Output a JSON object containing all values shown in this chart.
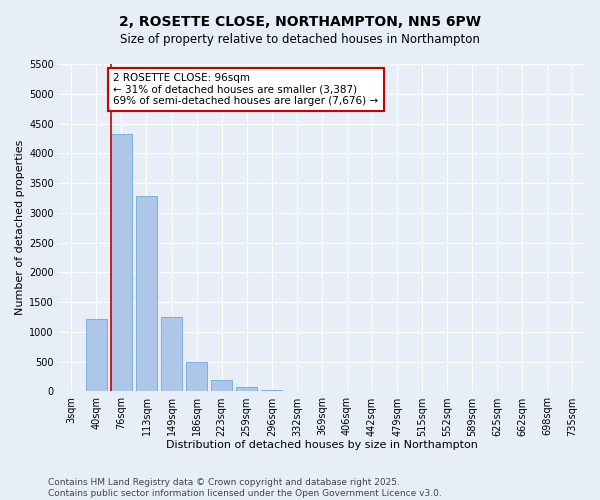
{
  "title": "2, ROSETTE CLOSE, NORTHAMPTON, NN5 6PW",
  "subtitle": "Size of property relative to detached houses in Northampton",
  "xlabel": "Distribution of detached houses by size in Northampton",
  "ylabel": "Number of detached properties",
  "categories": [
    "3sqm",
    "40sqm",
    "76sqm",
    "113sqm",
    "149sqm",
    "186sqm",
    "223sqm",
    "259sqm",
    "296sqm",
    "332sqm",
    "369sqm",
    "406sqm",
    "442sqm",
    "479sqm",
    "515sqm",
    "552sqm",
    "589sqm",
    "625sqm",
    "662sqm",
    "698sqm",
    "735sqm"
  ],
  "values": [
    0,
    1220,
    4330,
    3280,
    1250,
    490,
    200,
    80,
    30,
    0,
    0,
    0,
    0,
    0,
    0,
    0,
    0,
    0,
    0,
    0,
    0
  ],
  "bar_color": "#aec6e8",
  "bar_edge_color": "#5a9fd4",
  "vline_index": 2,
  "annotation_title": "2 ROSETTE CLOSE: 96sqm",
  "annotation_line1": "← 31% of detached houses are smaller (3,387)",
  "annotation_line2": "69% of semi-detached houses are larger (7,676) →",
  "annotation_color": "#cc0000",
  "ylim": [
    0,
    5500
  ],
  "yticks": [
    0,
    500,
    1000,
    1500,
    2000,
    2500,
    3000,
    3500,
    4000,
    4500,
    5000,
    5500
  ],
  "footer1": "Contains HM Land Registry data © Crown copyright and database right 2025.",
  "footer2": "Contains public sector information licensed under the Open Government Licence v3.0.",
  "bg_color": "#e8eef8",
  "grid_color": "#ffffff",
  "title_fontsize": 10,
  "subtitle_fontsize": 8.5,
  "axis_label_fontsize": 8,
  "tick_fontsize": 7,
  "annotation_fontsize": 7.5,
  "footer_fontsize": 6.5
}
